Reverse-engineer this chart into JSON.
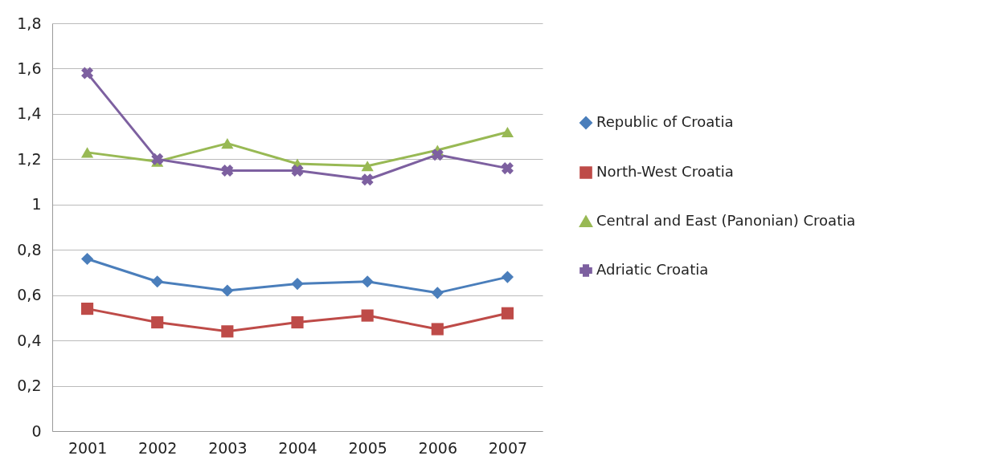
{
  "chart_data": {
    "type": "line",
    "categories": [
      "2001",
      "2002",
      "2003",
      "2004",
      "2005",
      "2006",
      "2007"
    ],
    "series": [
      {
        "name": "Republic of Croatia",
        "color": "#4a7ebb",
        "marker": "diamond",
        "values": [
          0.76,
          0.66,
          0.62,
          0.65,
          0.66,
          0.61,
          0.68
        ]
      },
      {
        "name": "North-West Croatia",
        "color": "#be4b48",
        "marker": "square",
        "values": [
          0.54,
          0.48,
          0.44,
          0.48,
          0.51,
          0.45,
          0.52
        ]
      },
      {
        "name": "Central and East (Panonian) Croatia",
        "color": "#98b954",
        "marker": "triangle",
        "values": [
          1.23,
          1.19,
          1.27,
          1.18,
          1.17,
          1.24,
          1.32
        ]
      },
      {
        "name": "Adriatic Croatia",
        "color": "#7d60a0",
        "marker": "cross",
        "values": [
          1.58,
          1.2,
          1.15,
          1.15,
          1.11,
          1.22,
          1.16
        ]
      }
    ],
    "ylim": [
      0,
      1.8
    ],
    "yticks": [
      0,
      {
        "value": 0.2,
        "label": "0,2"
      },
      {
        "value": 0.4,
        "label": "0,4"
      },
      {
        "value": 0.6,
        "label": "0,6"
      },
      {
        "value": 0.8,
        "label": "0,8"
      },
      1,
      {
        "value": 1.2,
        "label": "1,2"
      },
      {
        "value": 1.4,
        "label": "1,4"
      },
      {
        "value": 1.6,
        "label": "1,6"
      },
      {
        "value": 1.8,
        "label": "1,8"
      }
    ],
    "grid": "y",
    "legend": "right"
  }
}
